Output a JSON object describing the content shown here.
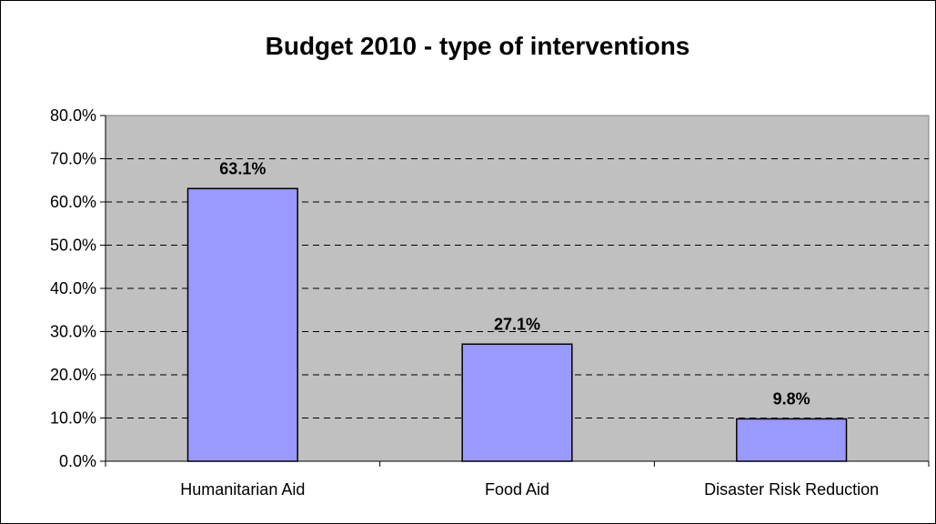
{
  "chart_data": {
    "type": "bar",
    "title": "Budget 2010 - type of interventions",
    "xlabel": "",
    "ylabel": "",
    "categories": [
      "Humanitarian Aid",
      "Food Aid",
      "Disaster Risk Reduction"
    ],
    "values": [
      63.1,
      27.1,
      9.8
    ],
    "data_labels": [
      "63.1%",
      "27.1%",
      "9.8%"
    ],
    "ylim": [
      0,
      80
    ],
    "y_ticks": [
      0,
      10,
      20,
      30,
      40,
      50,
      60,
      70,
      80
    ],
    "y_tick_labels": [
      "0.0%",
      "10.0%",
      "20.0%",
      "30.0%",
      "40.0%",
      "50.0%",
      "60.0%",
      "70.0%",
      "80.0%"
    ],
    "grid": true,
    "legend": "none",
    "colors": {
      "bar_fill": "#9999ff",
      "plot_background": "#c0c0c0",
      "gridline": "#000000",
      "border": "#000000"
    }
  }
}
